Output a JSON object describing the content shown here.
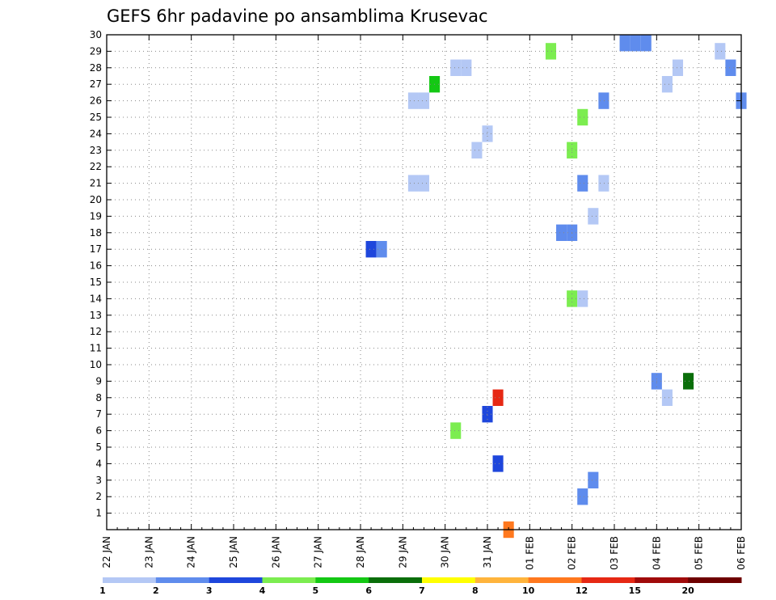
{
  "chart_data": {
    "type": "heatmap",
    "title": "GEFS 6hr padavine po ansamblima Krusevac",
    "xlabel": "",
    "ylabel": "",
    "x_ticks": [
      "22 JAN",
      "23 JAN",
      "24 JAN",
      "25 JAN",
      "26 JAN",
      "27 JAN",
      "28 JAN",
      "29 JAN",
      "30 JAN",
      "31 JAN",
      "01 FEB",
      "02 FEB",
      "03 FEB",
      "04 FEB",
      "05 FEB",
      "06 FEB"
    ],
    "y_ticks": [
      "1",
      "2",
      "3",
      "4",
      "5",
      "6",
      "7",
      "8",
      "9",
      "10",
      "11",
      "12",
      "13",
      "14",
      "15",
      "16",
      "17",
      "18",
      "19",
      "20",
      "21",
      "22",
      "23",
      "24",
      "25",
      "26",
      "27",
      "28",
      "29",
      "30"
    ],
    "xlim_steps": [
      0,
      60
    ],
    "ylim_members": [
      0,
      30
    ],
    "colorbar": {
      "labels": [
        "1",
        "2",
        "3",
        "4",
        "5",
        "6",
        "7",
        "8",
        "10",
        "12",
        "15",
        "20"
      ],
      "colors": [
        "#b4c8f5",
        "#5f8ced",
        "#1e46dc",
        "#7ced50",
        "#14c814",
        "#0a6e0a",
        "#ffff00",
        "#ffb43c",
        "#ff781e",
        "#e62814",
        "#a00a0a",
        "#6e0000"
      ]
    },
    "cells": [
      {
        "step": 38,
        "member": 0,
        "c": 8
      },
      {
        "step": 49,
        "member": 30,
        "c": 1
      },
      {
        "step": 50,
        "member": 30,
        "c": 1
      },
      {
        "step": 51,
        "member": 30,
        "c": 1
      },
      {
        "step": 45,
        "member": 21,
        "c": 1
      },
      {
        "step": 47,
        "member": 26,
        "c": 1
      },
      {
        "step": 53,
        "member": 27,
        "c": 0
      },
      {
        "step": 54,
        "member": 28,
        "c": 0
      },
      {
        "step": 60,
        "member": 26,
        "c": 1
      },
      {
        "step": 35,
        "member": 23,
        "c": 0
      },
      {
        "step": 36,
        "member": 24,
        "c": 0
      },
      {
        "step": 45,
        "member": 2,
        "c": 1
      },
      {
        "step": 46,
        "member": 3,
        "c": 1
      },
      {
        "step": 25,
        "member": 17,
        "c": 2
      },
      {
        "step": 26,
        "member": 17,
        "c": 1
      },
      {
        "step": 43,
        "member": 18,
        "c": 1
      },
      {
        "step": 44,
        "member": 18,
        "c": 1
      },
      {
        "step": 42,
        "member": 29,
        "c": 3
      },
      {
        "step": 45,
        "member": 25,
        "c": 3
      },
      {
        "step": 44,
        "member": 23,
        "c": 3
      },
      {
        "step": 59,
        "member": 28,
        "c": 1
      },
      {
        "step": 33,
        "member": 6,
        "c": 3
      },
      {
        "step": 46,
        "member": 19,
        "c": 0
      },
      {
        "step": 29,
        "member": 26,
        "c": 0
      },
      {
        "step": 30,
        "member": 26,
        "c": 0
      },
      {
        "step": 58,
        "member": 29,
        "c": 0
      },
      {
        "step": 31,
        "member": 27,
        "c": 4
      },
      {
        "step": 47,
        "member": 21,
        "c": 0
      },
      {
        "step": 37,
        "member": 4,
        "c": 2
      },
      {
        "step": 36,
        "member": 7,
        "c": 2
      },
      {
        "step": 37,
        "member": 8,
        "c": 9
      },
      {
        "step": 44,
        "member": 14,
        "c": 3
      },
      {
        "step": 45,
        "member": 14,
        "c": 0
      },
      {
        "step": 52,
        "member": 9,
        "c": 1
      },
      {
        "step": 53,
        "member": 8,
        "c": 0
      },
      {
        "step": 29,
        "member": 21,
        "c": 0
      },
      {
        "step": 30,
        "member": 21,
        "c": 0
      },
      {
        "step": 33,
        "member": 28,
        "c": 0
      },
      {
        "step": 34,
        "member": 28,
        "c": 0
      },
      {
        "step": 55,
        "member": 9,
        "c": 5
      }
    ]
  }
}
